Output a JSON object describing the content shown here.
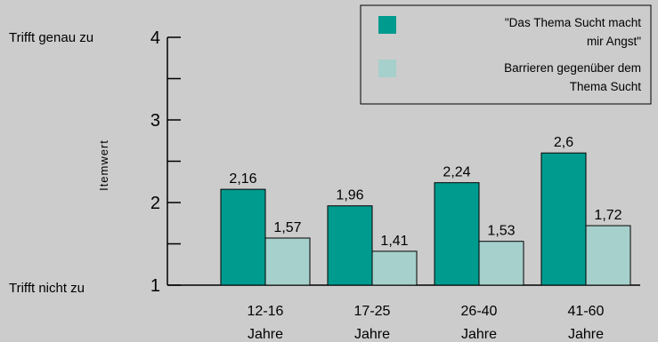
{
  "chart_data": {
    "type": "bar",
    "categories": [
      "12-16 Jahre",
      "17-25 Jahre",
      "26-40 Jahre",
      "41-60 Jahre"
    ],
    "categories_lines": [
      [
        "12-16",
        "Jahre"
      ],
      [
        "17-25",
        "Jahre"
      ],
      [
        "26-40",
        "Jahre"
      ],
      [
        "41-60",
        "Jahre"
      ]
    ],
    "series": [
      {
        "name": "\"Das Thema Sucht macht mir Angst\"",
        "name_lines": [
          "\"Das Thema Sucht macht",
          "mir Angst\""
        ],
        "values": [
          2.16,
          1.96,
          2.24,
          2.6
        ],
        "value_labels": [
          "2,16",
          "1,96",
          "2,24",
          "2,6"
        ],
        "color": "#009b8f"
      },
      {
        "name": "Barrieren gegenüber dem Thema Sucht",
        "name_lines": [
          "Barrieren gegenüber dem",
          "Thema Sucht"
        ],
        "values": [
          1.57,
          1.41,
          1.53,
          1.72
        ],
        "value_labels": [
          "1,57",
          "1,41",
          "1,53",
          "1,72"
        ],
        "color": "#a6d0cc"
      }
    ],
    "ylabel": "Itemwert",
    "ylim": [
      1,
      4
    ],
    "yticks": [
      1,
      2,
      3,
      4
    ],
    "y_minor_ticks": [
      1.5,
      2.5,
      3.5
    ],
    "y_annotations": {
      "top": "Trifft genau zu",
      "bottom": "Trifft nicht zu"
    },
    "legend": "top-right",
    "grid": false
  }
}
